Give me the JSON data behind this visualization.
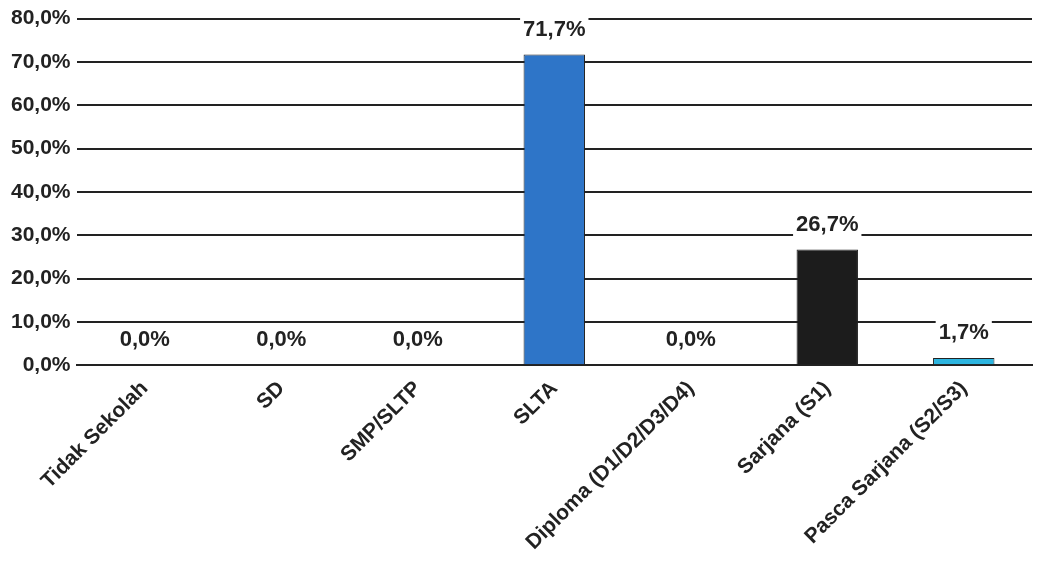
{
  "chart_data": {
    "type": "bar",
    "categories": [
      "Tidak Sekolah",
      "SD",
      "SMP/SLTP",
      "SLTA",
      "Diploma (D1/D2/D3/D4)",
      "Sarjana (S1)",
      "Pasca Sarjana (S2/S3)"
    ],
    "values": [
      0,
      0,
      0,
      71.7,
      0,
      26.7,
      1.7
    ],
    "colors": [
      "#2e75c8",
      "#2e75c8",
      "#2e75c8",
      "#2e75c8",
      "#2e75c8",
      "#1c1c1c",
      "#2cb5e0"
    ],
    "value_labels": [
      "0,0%",
      "0,0%",
      "0,0%",
      "71,7%",
      "0,0%",
      "26,7%",
      "1,7%"
    ],
    "ylim": [
      0,
      80
    ],
    "yticks": [
      {
        "value": 0,
        "label": "0,0%"
      },
      {
        "value": 10,
        "label": "10,0%"
      },
      {
        "value": 20,
        "label": "20,0%"
      },
      {
        "value": 30,
        "label": "30,0%"
      },
      {
        "value": 40,
        "label": "40,0%"
      },
      {
        "value": 50,
        "label": "50,0%"
      },
      {
        "value": 60,
        "label": "60,0%"
      },
      {
        "value": 70,
        "label": "70,0%"
      },
      {
        "value": 80,
        "label": "80,0%"
      }
    ],
    "grid": "y"
  }
}
